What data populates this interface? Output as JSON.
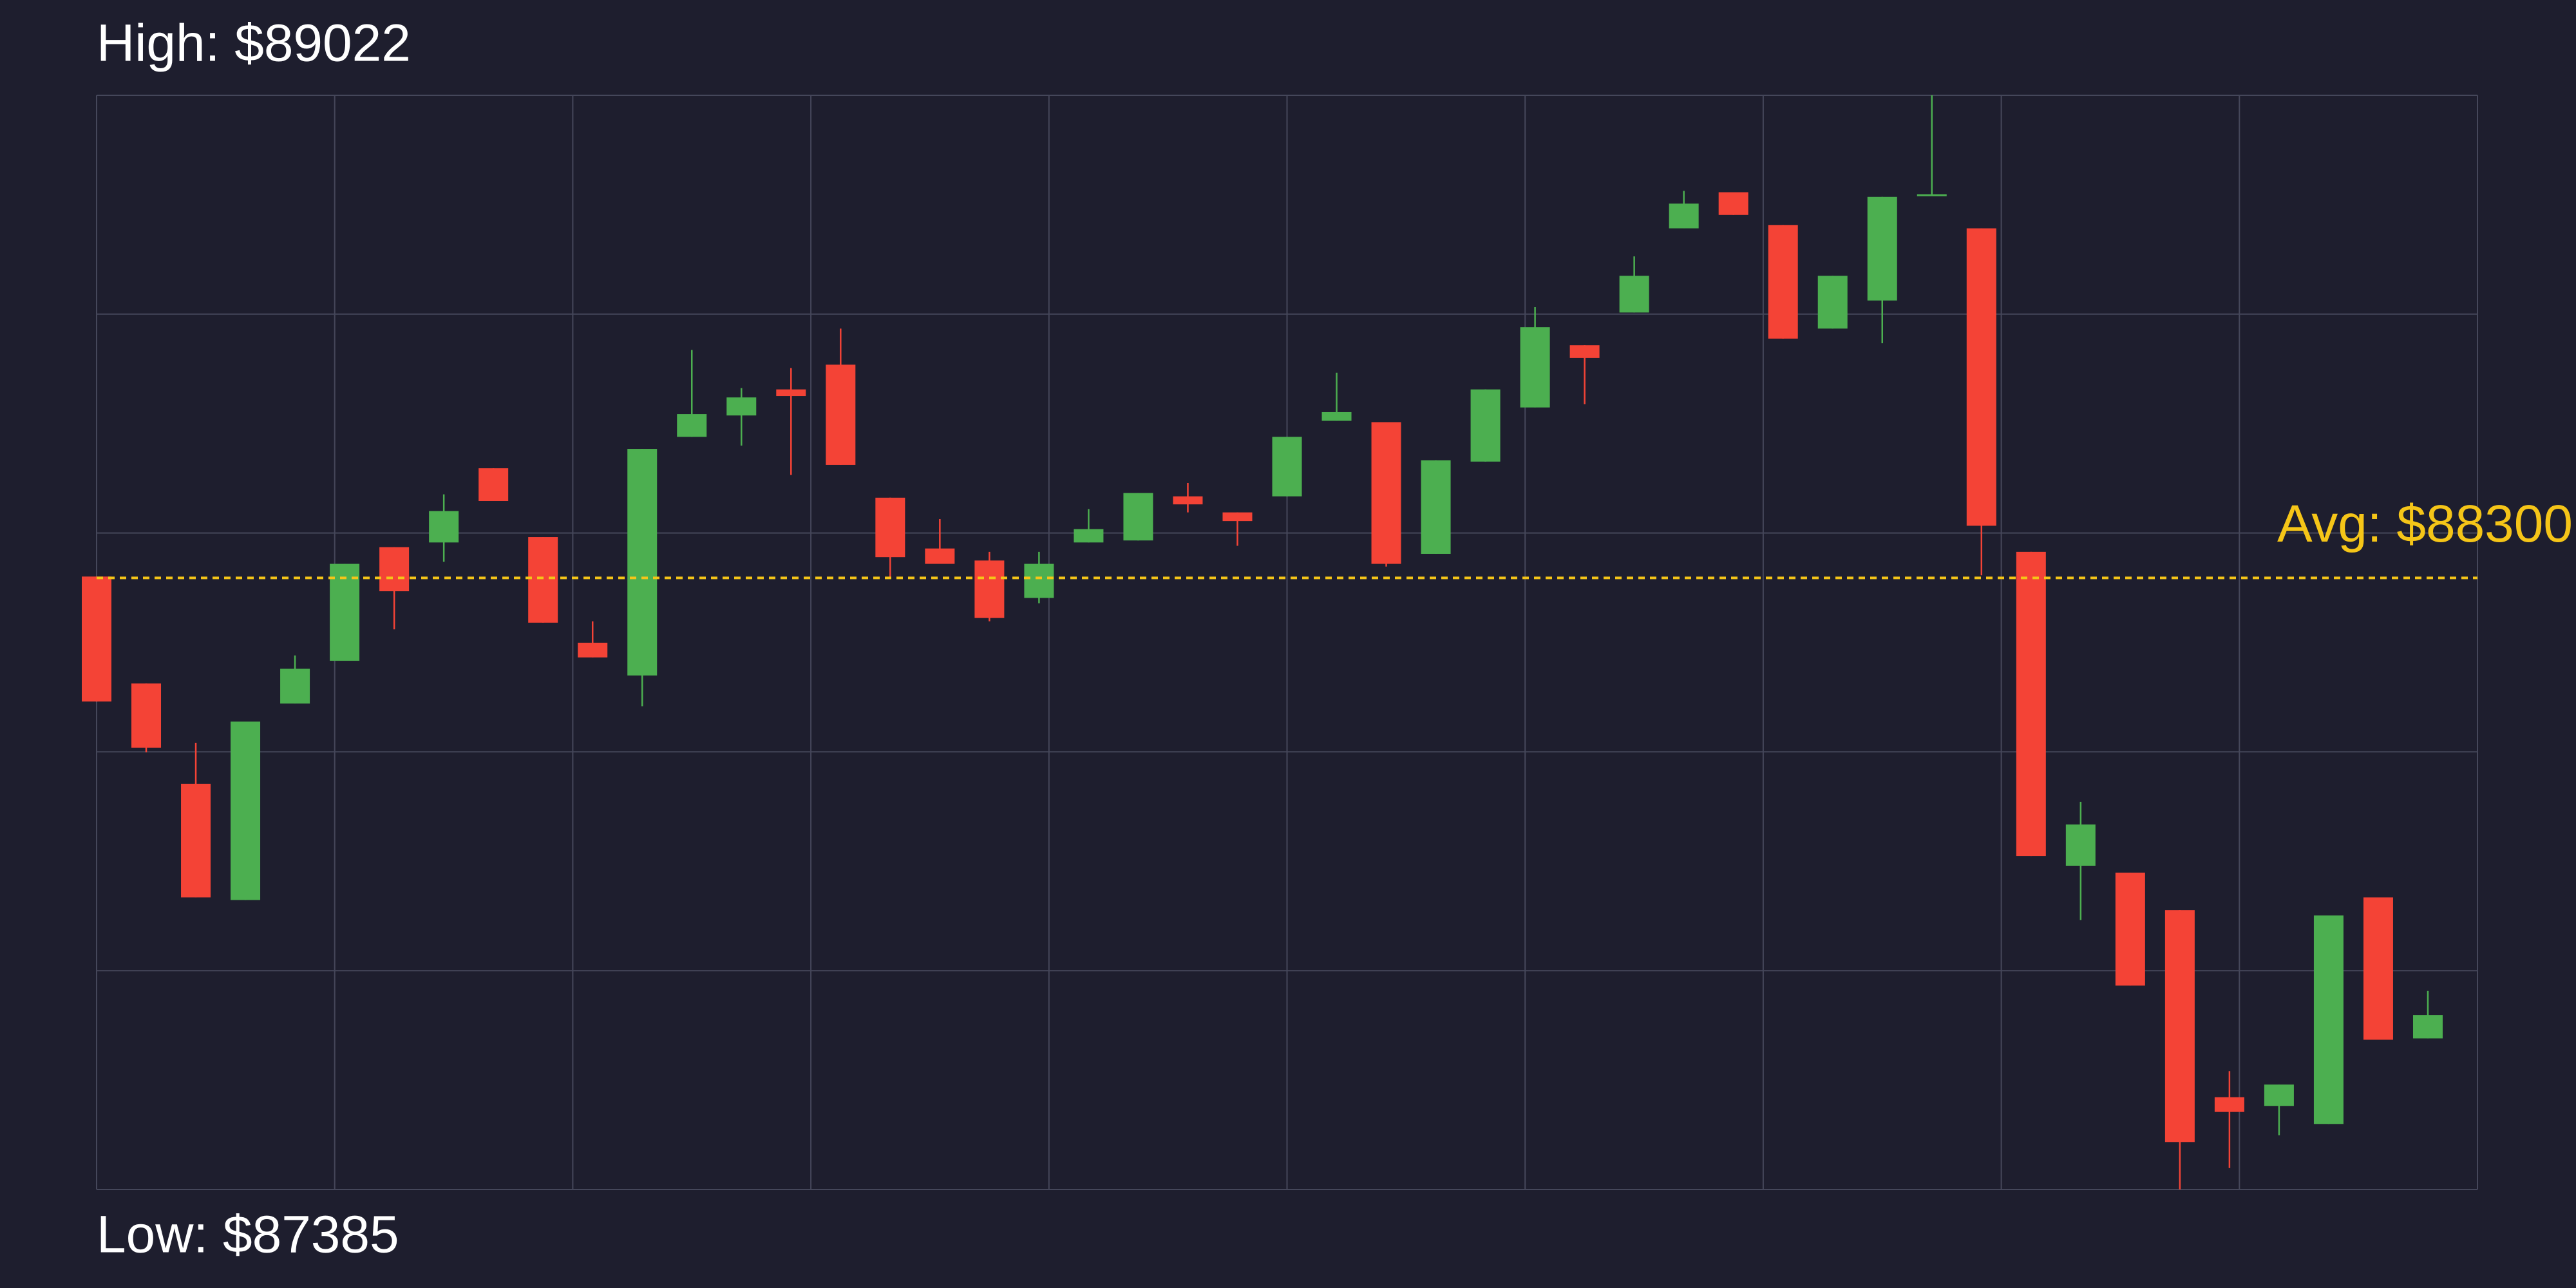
{
  "chart_data": {
    "type": "candlestick",
    "high_label": "High: $89022",
    "low_label": "Low: $87385",
    "avg_label": "Avg: $88300",
    "avg": 88300,
    "up_color": "#4caf50",
    "down_color": "#f44336",
    "avg_color": "#f5c518",
    "grid": true,
    "ylim": [
      87385,
      89022
    ],
    "yticks": [
      87385,
      87712.4,
      88039.8,
      88367.2,
      88694.6,
      89022
    ],
    "open": [
      88302,
      88142,
      87992,
      87818,
      88112,
      88176,
      88346,
      88353,
      88464,
      88361,
      88203,
      88154,
      88511,
      88543,
      88582,
      88619,
      88420,
      88344,
      88326,
      88270,
      88353,
      88356,
      88422,
      88398,
      88422,
      88535,
      88533,
      88336,
      88474,
      88555,
      88648,
      88697,
      88823,
      88877,
      88828,
      88673,
      88715,
      88872,
      88823,
      88339,
      87869,
      87859,
      87803,
      87523,
      87510,
      87483,
      87822,
      87611
    ],
    "high": [
      88302,
      88142,
      88053,
      88085,
      88184,
      88321,
      88346,
      88425,
      88464,
      88361,
      88235,
      88493,
      88641,
      88584,
      88614,
      88673,
      88420,
      88388,
      88339,
      88339,
      88403,
      88427,
      88442,
      88398,
      88511,
      88607,
      88533,
      88476,
      88582,
      88705,
      88648,
      88781,
      88879,
      88877,
      88828,
      88752,
      88870,
      89022,
      88823,
      88339,
      87965,
      87859,
      87803,
      87562,
      87542,
      87795,
      87822,
      87682
    ],
    "low": [
      88115,
      88039,
      87822,
      87818,
      88112,
      88176,
      88223,
      88324,
      88415,
      88233,
      88181,
      88108,
      88511,
      88498,
      88454,
      88469,
      88299,
      88321,
      88235,
      88262,
      88353,
      88356,
      88398,
      88348,
      88422,
      88535,
      88317,
      88336,
      88474,
      88555,
      88560,
      88697,
      88823,
      88843,
      88658,
      88673,
      88651,
      88872,
      88304,
      87884,
      87788,
      87690,
      87385,
      87417,
      87466,
      87483,
      87609,
      87611
    ],
    "close": [
      88115,
      88046,
      87822,
      88085,
      88164,
      88321,
      88280,
      88400,
      88415,
      88233,
      88181,
      88493,
      88545,
      88570,
      88572,
      88469,
      88331,
      88321,
      88240,
      88321,
      88373,
      88427,
      88410,
      88385,
      88511,
      88548,
      88321,
      88476,
      88582,
      88675,
      88629,
      88752,
      88860,
      88843,
      88658,
      88752,
      88870,
      88874,
      88378,
      87884,
      87931,
      87690,
      87456,
      87501,
      87542,
      87795,
      87609,
      87646
    ]
  }
}
